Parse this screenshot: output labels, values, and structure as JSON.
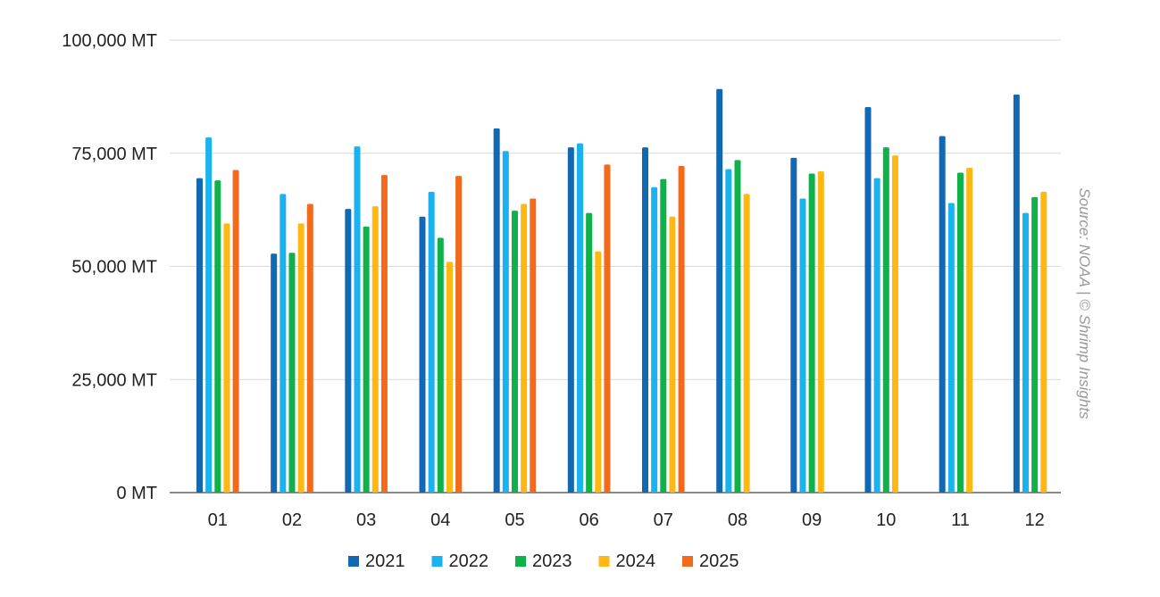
{
  "source_note": "Source: NOAA | © Shrimp Insights",
  "chart_data": {
    "type": "bar",
    "categories": [
      "01",
      "02",
      "03",
      "04",
      "05",
      "06",
      "07",
      "08",
      "09",
      "10",
      "11",
      "12"
    ],
    "y_ticks": [
      "0 MT",
      "25,000 MT",
      "50,000 MT",
      "75,000 MT",
      "100,000 MT"
    ],
    "ylim": [
      0,
      100000
    ],
    "grid": true,
    "legend_position": "bottom",
    "series": [
      {
        "name": "2021",
        "color": "#1268b3",
        "values": [
          69500,
          52800,
          62700,
          61000,
          80500,
          76300,
          76300,
          89200,
          74000,
          85200,
          78800,
          88000
        ]
      },
      {
        "name": "2022",
        "color": "#1ab3f0",
        "values": [
          78500,
          66000,
          76500,
          66500,
          75500,
          77200,
          67500,
          71500,
          65000,
          69500,
          64000,
          61800
        ]
      },
      {
        "name": "2023",
        "color": "#0fb14b",
        "values": [
          69000,
          53000,
          58800,
          56300,
          62300,
          61800,
          69300,
          73500,
          70500,
          76300,
          70700,
          65300
        ]
      },
      {
        "name": "2024",
        "color": "#fdb813",
        "values": [
          59500,
          59500,
          63300,
          51000,
          63800,
          53300,
          61000,
          66000,
          71000,
          74500,
          71800,
          66500
        ]
      },
      {
        "name": "2025",
        "color": "#f36a1d",
        "values": [
          71300,
          63800,
          70200,
          70000,
          65000,
          72500,
          72200,
          null,
          null,
          null,
          null,
          null
        ]
      }
    ]
  }
}
